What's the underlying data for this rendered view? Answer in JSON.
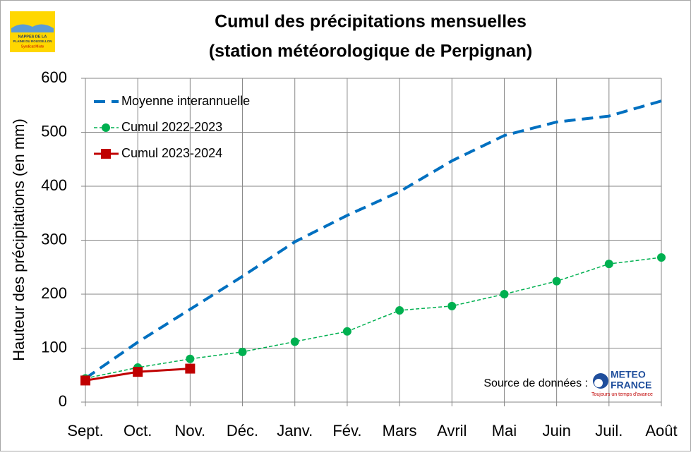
{
  "chart_data": {
    "type": "line",
    "title": "Cumul des précipitations mensuelles",
    "subtitle": "(station météorologique de Perpignan)",
    "y_label": "Hauteur des précipitations (en mm)",
    "categories": [
      "Sept.",
      "Oct.",
      "Nov.",
      "Déc.",
      "Janv.",
      "Fév.",
      "Mars",
      "Avril",
      "Mai",
      "Juin",
      "Juil.",
      "Août"
    ],
    "series": [
      {
        "name": "Moyenne interannuelle",
        "color": "#0070c0",
        "dash": true,
        "marker": "none",
        "values": [
          44,
          111,
          172,
          233,
          297,
          346,
          390,
          447,
          494,
          519,
          530,
          558
        ]
      },
      {
        "name": "Cumul 2022-2023",
        "color": "#00b050",
        "dash": true,
        "marker": "circle",
        "values": [
          44,
          64,
          80,
          93,
          112,
          131,
          170,
          178,
          200,
          224,
          256,
          268
        ]
      },
      {
        "name": "Cumul 2023-2024",
        "color": "#c00000",
        "dash": false,
        "marker": "square",
        "values": [
          40,
          56,
          62,
          null,
          null,
          null,
          null,
          null,
          null,
          null,
          null,
          null
        ]
      }
    ],
    "ylim": [
      0,
      600
    ],
    "yticks": [
      0,
      100,
      200,
      300,
      400,
      500,
      600
    ],
    "grid": true,
    "legend": "top-left",
    "source": "Source de données :",
    "source_logo": [
      "METEO",
      "FRANCE",
      "Toujours un temps d'avance"
    ],
    "corner_logo": [
      "NAPPES DE LA",
      "PLAINE DU ROUSSILLON",
      "Syndicat Mixte"
    ]
  }
}
